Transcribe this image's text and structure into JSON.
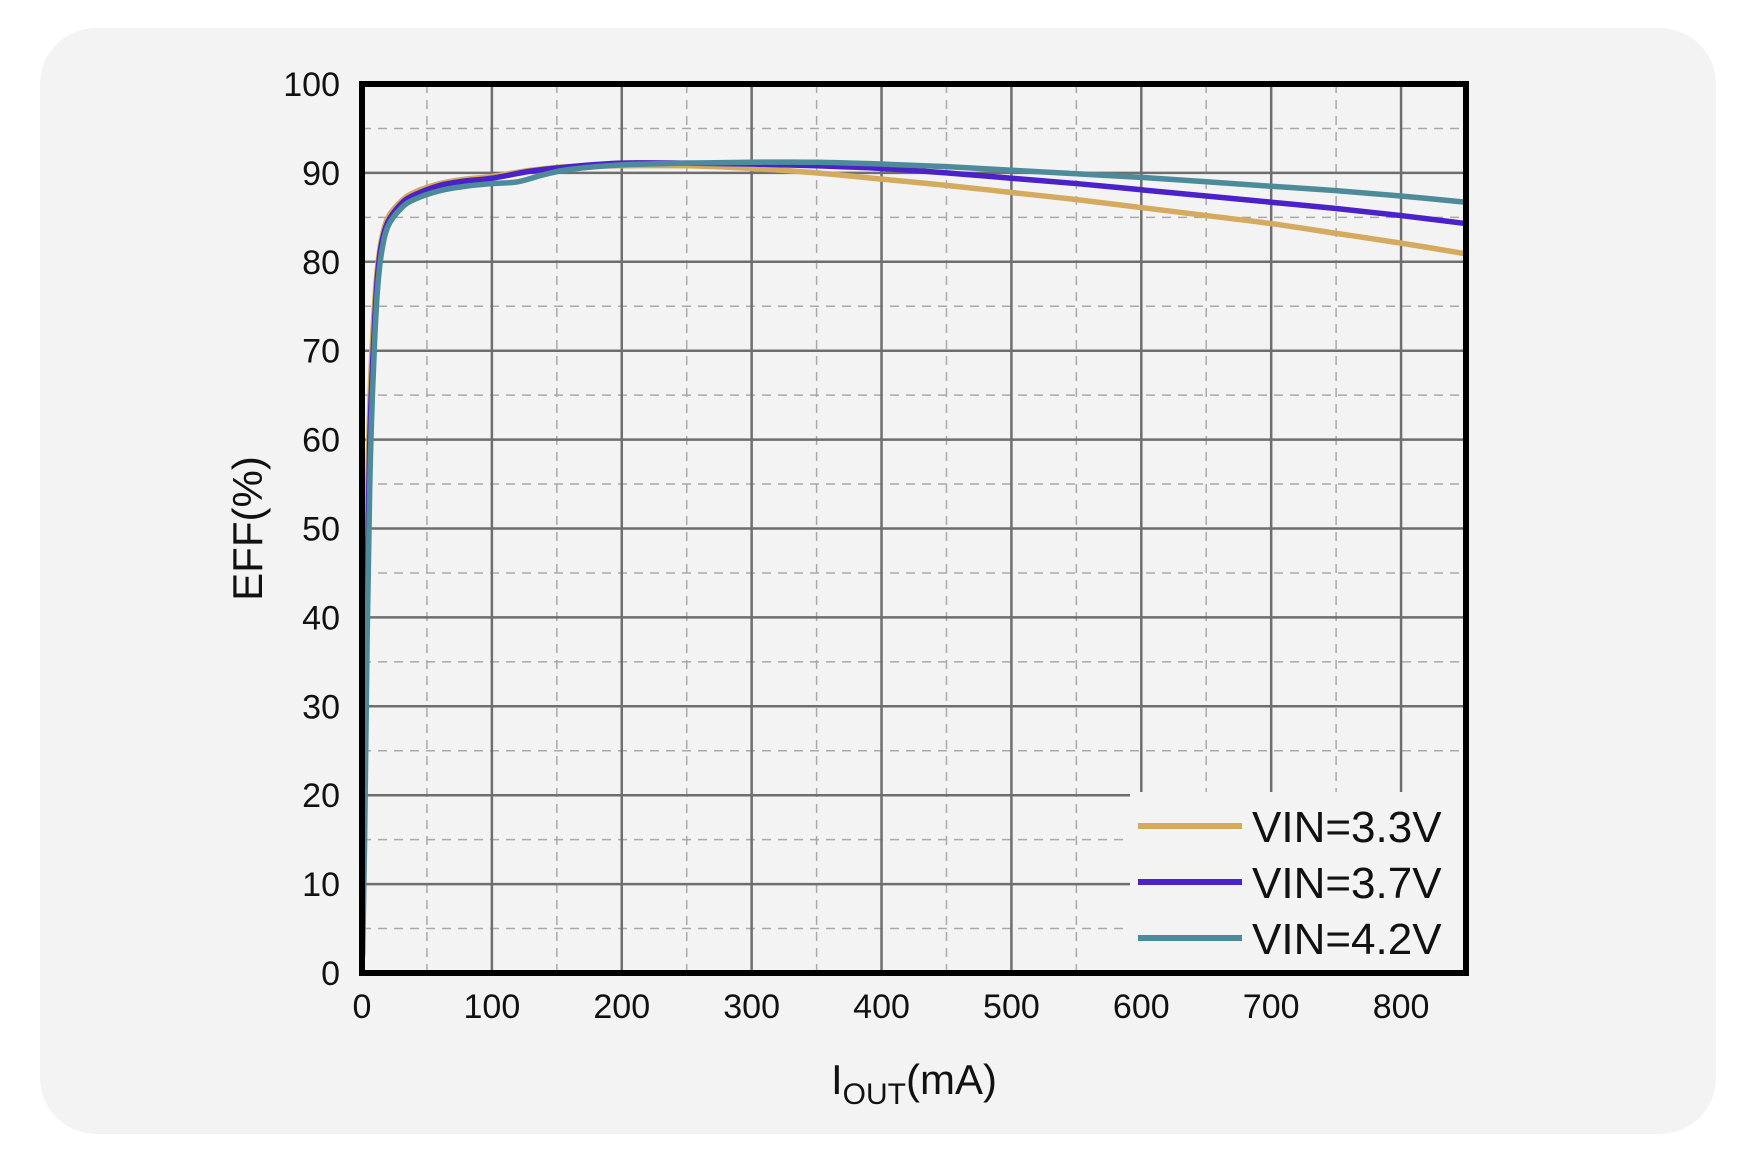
{
  "chart_data": {
    "type": "line",
    "title": "",
    "xlabel": {
      "main": "I",
      "sub": "OUT",
      "unit": "(mA)"
    },
    "ylabel": "EFF(%)",
    "xlim": [
      0,
      850
    ],
    "ylim": [
      0,
      100
    ],
    "x_ticks": [
      0,
      100,
      200,
      300,
      400,
      500,
      600,
      700,
      800
    ],
    "x_tick_labels": [
      "0",
      "100",
      "200",
      "300",
      "400",
      "500",
      "600",
      "700",
      "800"
    ],
    "y_ticks": [
      0,
      10,
      20,
      30,
      40,
      50,
      60,
      70,
      80,
      90,
      100
    ],
    "y_tick_labels": [
      "0",
      "10",
      "20",
      "30",
      "40",
      "50",
      "60",
      "70",
      "80",
      "90",
      "100"
    ],
    "grid": true,
    "legend_position": "bottom-right",
    "series": [
      {
        "name": "VIN=3.3V",
        "color": "#d4aa5e",
        "x": [
          0.5,
          2,
          4,
          6,
          8,
          10,
          12,
          15,
          20,
          30,
          40,
          60,
          80,
          100,
          130,
          160,
          200,
          250,
          300,
          350,
          400,
          450,
          500,
          550,
          600,
          650,
          700,
          750,
          800,
          850
        ],
        "y": [
          8,
          30,
          52,
          64,
          71,
          76,
          79.5,
          82.5,
          85,
          86.8,
          87.8,
          88.8,
          89.3,
          89.6,
          90.3,
          90.7,
          90.8,
          90.8,
          90.5,
          90,
          89.3,
          88.6,
          87.8,
          87,
          86.1,
          85.2,
          84.3,
          83.2,
          82.1,
          80.9
        ]
      },
      {
        "name": "VIN=3.7V",
        "color": "#4b22c8",
        "x": [
          0.5,
          2,
          4,
          6,
          8,
          10,
          12,
          15,
          20,
          30,
          40,
          60,
          80,
          100,
          130,
          160,
          200,
          250,
          300,
          350,
          400,
          450,
          500,
          550,
          600,
          650,
          700,
          750,
          800,
          850
        ],
        "y": [
          4,
          22,
          45,
          60,
          68,
          74,
          78.5,
          82,
          84.5,
          86.5,
          87.5,
          88.6,
          89.1,
          89.4,
          90.2,
          90.7,
          91.1,
          91.1,
          91,
          90.8,
          90.5,
          90,
          89.4,
          88.8,
          88.1,
          87.4,
          86.7,
          86,
          85.2,
          84.3
        ]
      },
      {
        "name": "VIN=4.2V",
        "color": "#4d8b9a",
        "x": [
          0.5,
          2,
          4,
          6,
          8,
          10,
          12,
          15,
          20,
          30,
          40,
          60,
          80,
          100,
          120,
          140,
          160,
          200,
          250,
          300,
          350,
          400,
          450,
          500,
          550,
          600,
          650,
          700,
          750,
          800,
          850
        ],
        "y": [
          2,
          15,
          38,
          55,
          65,
          72,
          77,
          81,
          84,
          86,
          87,
          88,
          88.5,
          88.8,
          89,
          89.8,
          90.4,
          90.9,
          91.1,
          91.2,
          91.2,
          91,
          90.7,
          90.3,
          89.9,
          89.5,
          89,
          88.5,
          88,
          87.4,
          86.7
        ]
      }
    ]
  }
}
